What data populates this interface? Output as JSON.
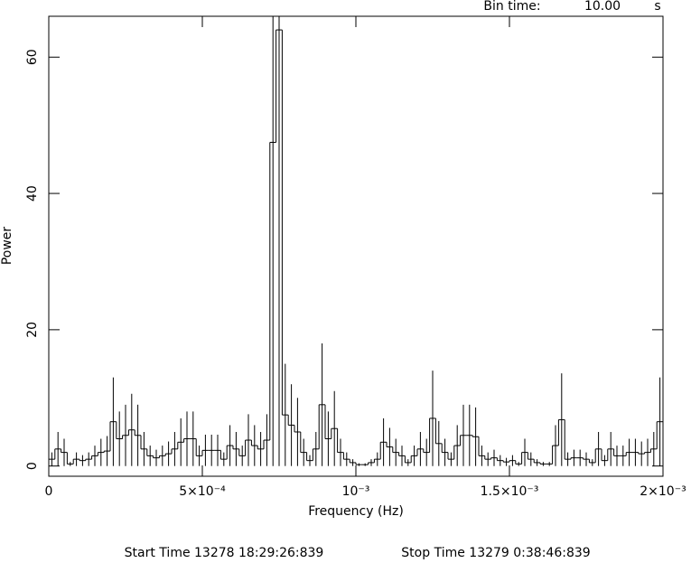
{
  "chart_data": {
    "type": "histogram",
    "xlabel": "Frequency (Hz)",
    "ylabel": "Power",
    "header": {
      "label": "Bin time:",
      "value": "10.00",
      "unit": "s"
    },
    "footer": {
      "start": "Start Time 13278 18:29:26:839",
      "stop": "Stop Time 13279  0:38:46:839"
    },
    "color": "#000000",
    "bins": [
      0,
      2e-05,
      4e-05,
      6e-05,
      8e-05,
      0.0001,
      0.00012,
      0.00014,
      0.00016,
      0.00018,
      0.0002,
      0.00022,
      0.00024,
      0.00026,
      0.00028,
      0.0003,
      0.00032,
      0.00034,
      0.00036,
      0.00038,
      0.0004,
      0.00042,
      0.00044,
      0.00046,
      0.00048,
      0.0005,
      0.00052,
      0.00054,
      0.00056,
      0.00058,
      0.0006,
      0.00062,
      0.00064,
      0.00066,
      0.00068,
      0.0007,
      0.00072,
      0.00074,
      0.00076,
      0.00078,
      0.0008,
      0.00082,
      0.00084,
      0.00086,
      0.00088,
      0.0009,
      0.00092,
      0.00094,
      0.00096,
      0.00098,
      0.001,
      0.00102,
      0.00104,
      0.00106,
      0.00108,
      0.0011,
      0.00112,
      0.00114,
      0.00116,
      0.00118,
      0.0012,
      0.00122,
      0.00124,
      0.00126,
      0.00128,
      0.0013,
      0.00132,
      0.00134,
      0.00136,
      0.00138,
      0.0014,
      0.00142,
      0.00144,
      0.00146,
      0.00148,
      0.0015,
      0.00152,
      0.00154,
      0.00156,
      0.00158,
      0.0016,
      0.00162,
      0.00164,
      0.00166,
      0.00168,
      0.0017,
      0.00172,
      0.00174,
      0.00176,
      0.00178,
      0.0018,
      0.00182,
      0.00184,
      0.00186,
      0.00188,
      0.0019,
      0.00192,
      0.00194,
      0.00196,
      0.00198,
      0.002
    ],
    "values": [
      1.0,
      2.5,
      2.0,
      0.3,
      1.0,
      0.8,
      1.0,
      1.5,
      2.0,
      2.2,
      6.5,
      4.0,
      4.5,
      5.3,
      4.5,
      2.5,
      1.5,
      1.2,
      1.5,
      1.8,
      2.5,
      3.5,
      4.0,
      4.0,
      1.5,
      2.3,
      2.3,
      2.3,
      1.0,
      3.0,
      2.5,
      1.5,
      3.8,
      3.0,
      2.5,
      3.8,
      47.5,
      64.0,
      7.5,
      6.0,
      5.0,
      2.0,
      0.8,
      2.5,
      9.0,
      4.0,
      5.5,
      2.0,
      1.0,
      0.5,
      0.2,
      0.2,
      0.5,
      1.0,
      3.5,
      2.8,
      2.0,
      1.5,
      0.5,
      1.5,
      2.5,
      2.0,
      7.0,
      3.3,
      2.0,
      1.0,
      3.0,
      4.5,
      4.5,
      4.3,
      1.5,
      1.0,
      1.2,
      0.8,
      0.6,
      0.8,
      0.3,
      2.0,
      1.0,
      0.5,
      0.3,
      0.3,
      3.0,
      6.8,
      1.0,
      1.2,
      1.2,
      1.0,
      0.5,
      2.5,
      0.8,
      2.5,
      1.5,
      1.5,
      2.0,
      2.0,
      1.8,
      2.0,
      2.5,
      6.5
    ],
    "errors": [
      1.0,
      2.5,
      2.0,
      0.3,
      1.0,
      0.8,
      1.0,
      1.5,
      2.0,
      2.2,
      6.5,
      4.0,
      4.5,
      5.3,
      4.5,
      2.5,
      1.5,
      1.2,
      1.5,
      1.8,
      2.5,
      3.5,
      4.0,
      4.0,
      1.5,
      2.3,
      2.3,
      2.3,
      1.0,
      3.0,
      2.5,
      1.5,
      3.8,
      3.0,
      2.5,
      3.8,
      47.5,
      64.0,
      7.5,
      6.0,
      5.0,
      2.0,
      0.8,
      2.5,
      9.0,
      4.0,
      5.5,
      2.0,
      1.0,
      0.5,
      0.2,
      0.2,
      0.5,
      1.0,
      3.5,
      2.8,
      2.0,
      1.5,
      0.5,
      1.5,
      2.5,
      2.0,
      7.0,
      3.3,
      2.0,
      1.0,
      3.0,
      4.5,
      4.5,
      4.3,
      1.5,
      1.0,
      1.2,
      0.8,
      0.6,
      0.8,
      0.3,
      2.0,
      1.0,
      0.5,
      0.3,
      0.3,
      3.0,
      6.8,
      1.0,
      1.2,
      1.2,
      1.0,
      0.5,
      2.5,
      0.8,
      2.5,
      1.5,
      1.5,
      2.0,
      2.0,
      1.8,
      2.0,
      2.5,
      6.5
    ],
    "xlim": [
      0,
      0.002
    ],
    "ylim": [
      -1.5,
      66
    ],
    "xticks": [
      0,
      {
        "value": 0.0005,
        "label": "5×10⁻⁴"
      },
      {
        "value": 0.001,
        "label": "10⁻³"
      },
      {
        "value": 0.0015,
        "label": "1.5×10⁻³"
      },
      {
        "value": 0.002,
        "label": "2×10⁻³"
      }
    ],
    "yticks": [
      0,
      20,
      40,
      60
    ]
  }
}
